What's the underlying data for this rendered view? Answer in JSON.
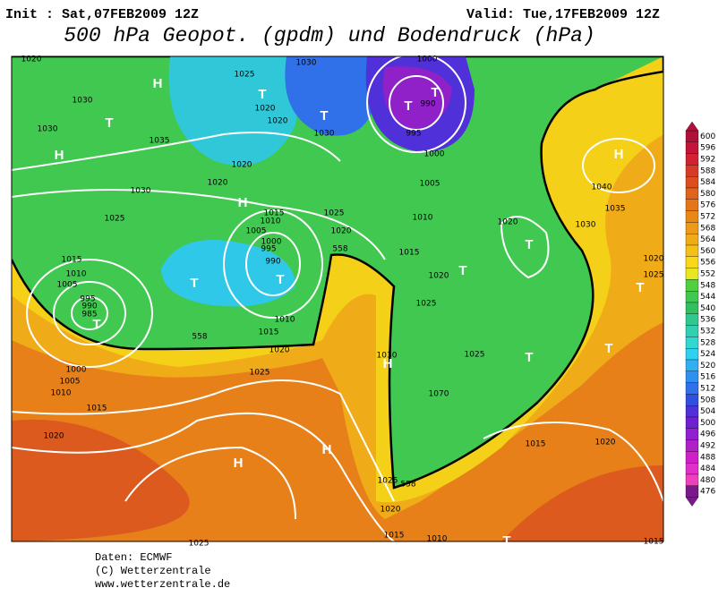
{
  "header": {
    "init": "Init : Sat,07FEB2009 12Z",
    "valid": "Valid: Tue,17FEB2009 12Z",
    "title": "500 hPa Geopot. (gpdm) und Bodendruck (hPa)"
  },
  "map": {
    "isobar_labels": [
      "1020",
      "1030",
      "1030",
      "1035",
      "1030",
      "1025",
      "1015",
      "1010",
      "1005",
      "995",
      "990",
      "985",
      "1000",
      "1005",
      "1010",
      "1015",
      "1020",
      "1025",
      "1025",
      "1020",
      "1015",
      "1010",
      "1015",
      "1010",
      "1005",
      "1000",
      "995",
      "990",
      "1025",
      "1020",
      "1025",
      "1020",
      "1020",
      "1020",
      "1020",
      "1030",
      "990",
      "995",
      "1000",
      "1005",
      "1010",
      "1015",
      "1020",
      "1025",
      "1030",
      "1025",
      "1020",
      "1070",
      "1040",
      "1035",
      "1030",
      "1015",
      "1020",
      "1025",
      "1020",
      "1015",
      "1010",
      "1015",
      "1020",
      "1025",
      "1000",
      "1030",
      "558",
      "558",
      "558"
    ],
    "centers": [
      "H",
      "T",
      "H",
      "T",
      "T",
      "H",
      "T",
      "T",
      "T",
      "T",
      "T",
      "H",
      "T",
      "T",
      "T",
      "T",
      "T",
      "H",
      "H",
      "H",
      "T"
    ]
  },
  "legend": {
    "values": [
      600,
      596,
      592,
      588,
      584,
      580,
      576,
      572,
      568,
      564,
      560,
      556,
      552,
      548,
      544,
      540,
      536,
      532,
      528,
      524,
      520,
      516,
      512,
      508,
      504,
      500,
      496,
      492,
      488,
      484,
      480,
      476
    ],
    "colors": [
      "#b0103a",
      "#c4143a",
      "#d42030",
      "#d83a28",
      "#dc4e20",
      "#e0621c",
      "#e4761a",
      "#e88818",
      "#ec9a18",
      "#f0ac18",
      "#f4c018",
      "#f8d818",
      "#e8e820",
      "#50d040",
      "#40c850",
      "#30c060",
      "#30c890",
      "#30d0b0",
      "#30d8d0",
      "#30d0f0",
      "#30b0f0",
      "#3090f0",
      "#3070e8",
      "#3050e0",
      "#5030d8",
      "#7020d0",
      "#9020d0",
      "#b020c8",
      "#d020c8",
      "#e030c8",
      "#f040c0",
      "#7a1a8a"
    ]
  },
  "footer": {
    "source": "Daten: ECMWF",
    "copyright": "(C) Wetterzentrale",
    "url": "www.wetterzentrale.de"
  }
}
